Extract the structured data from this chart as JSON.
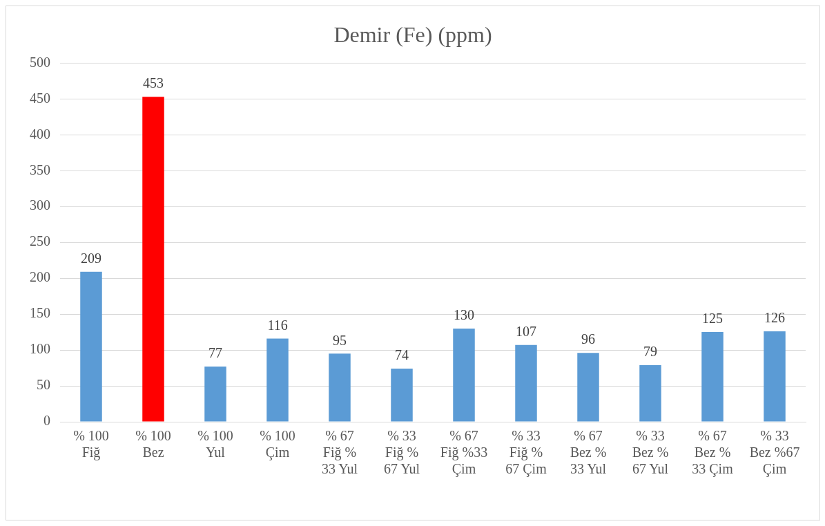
{
  "chart_data": {
    "type": "bar",
    "title": "Demir (Fe) (ppm)",
    "categories": [
      "% 100\nFiğ",
      "% 100\nBez",
      "% 100\nYul",
      "% 100\nÇim",
      "% 67\nFiğ %\n33 Yul",
      "% 33\nFiğ %\n67 Yul",
      "% 67\nFiğ %33\nÇim",
      "% 33\nFiğ %\n67 Çim",
      "% 67\nBez %\n33 Yul",
      "% 33\nBez %\n67 Yul",
      "% 67\nBez %\n33 Çim",
      "% 33\nBez %67\nÇim"
    ],
    "values": [
      209,
      453,
      77,
      116,
      95,
      74,
      130,
      107,
      96,
      79,
      125,
      126
    ],
    "colors": [
      "#5b9bd5",
      "#ff0000",
      "#5b9bd5",
      "#5b9bd5",
      "#5b9bd5",
      "#5b9bd5",
      "#5b9bd5",
      "#5b9bd5",
      "#5b9bd5",
      "#5b9bd5",
      "#5b9bd5",
      "#5b9bd5"
    ],
    "ylim": [
      0,
      500
    ],
    "yticks": [
      0,
      50,
      100,
      150,
      200,
      250,
      300,
      350,
      400,
      450,
      500
    ],
    "grid": "y",
    "data_labels": true,
    "legend": false
  }
}
